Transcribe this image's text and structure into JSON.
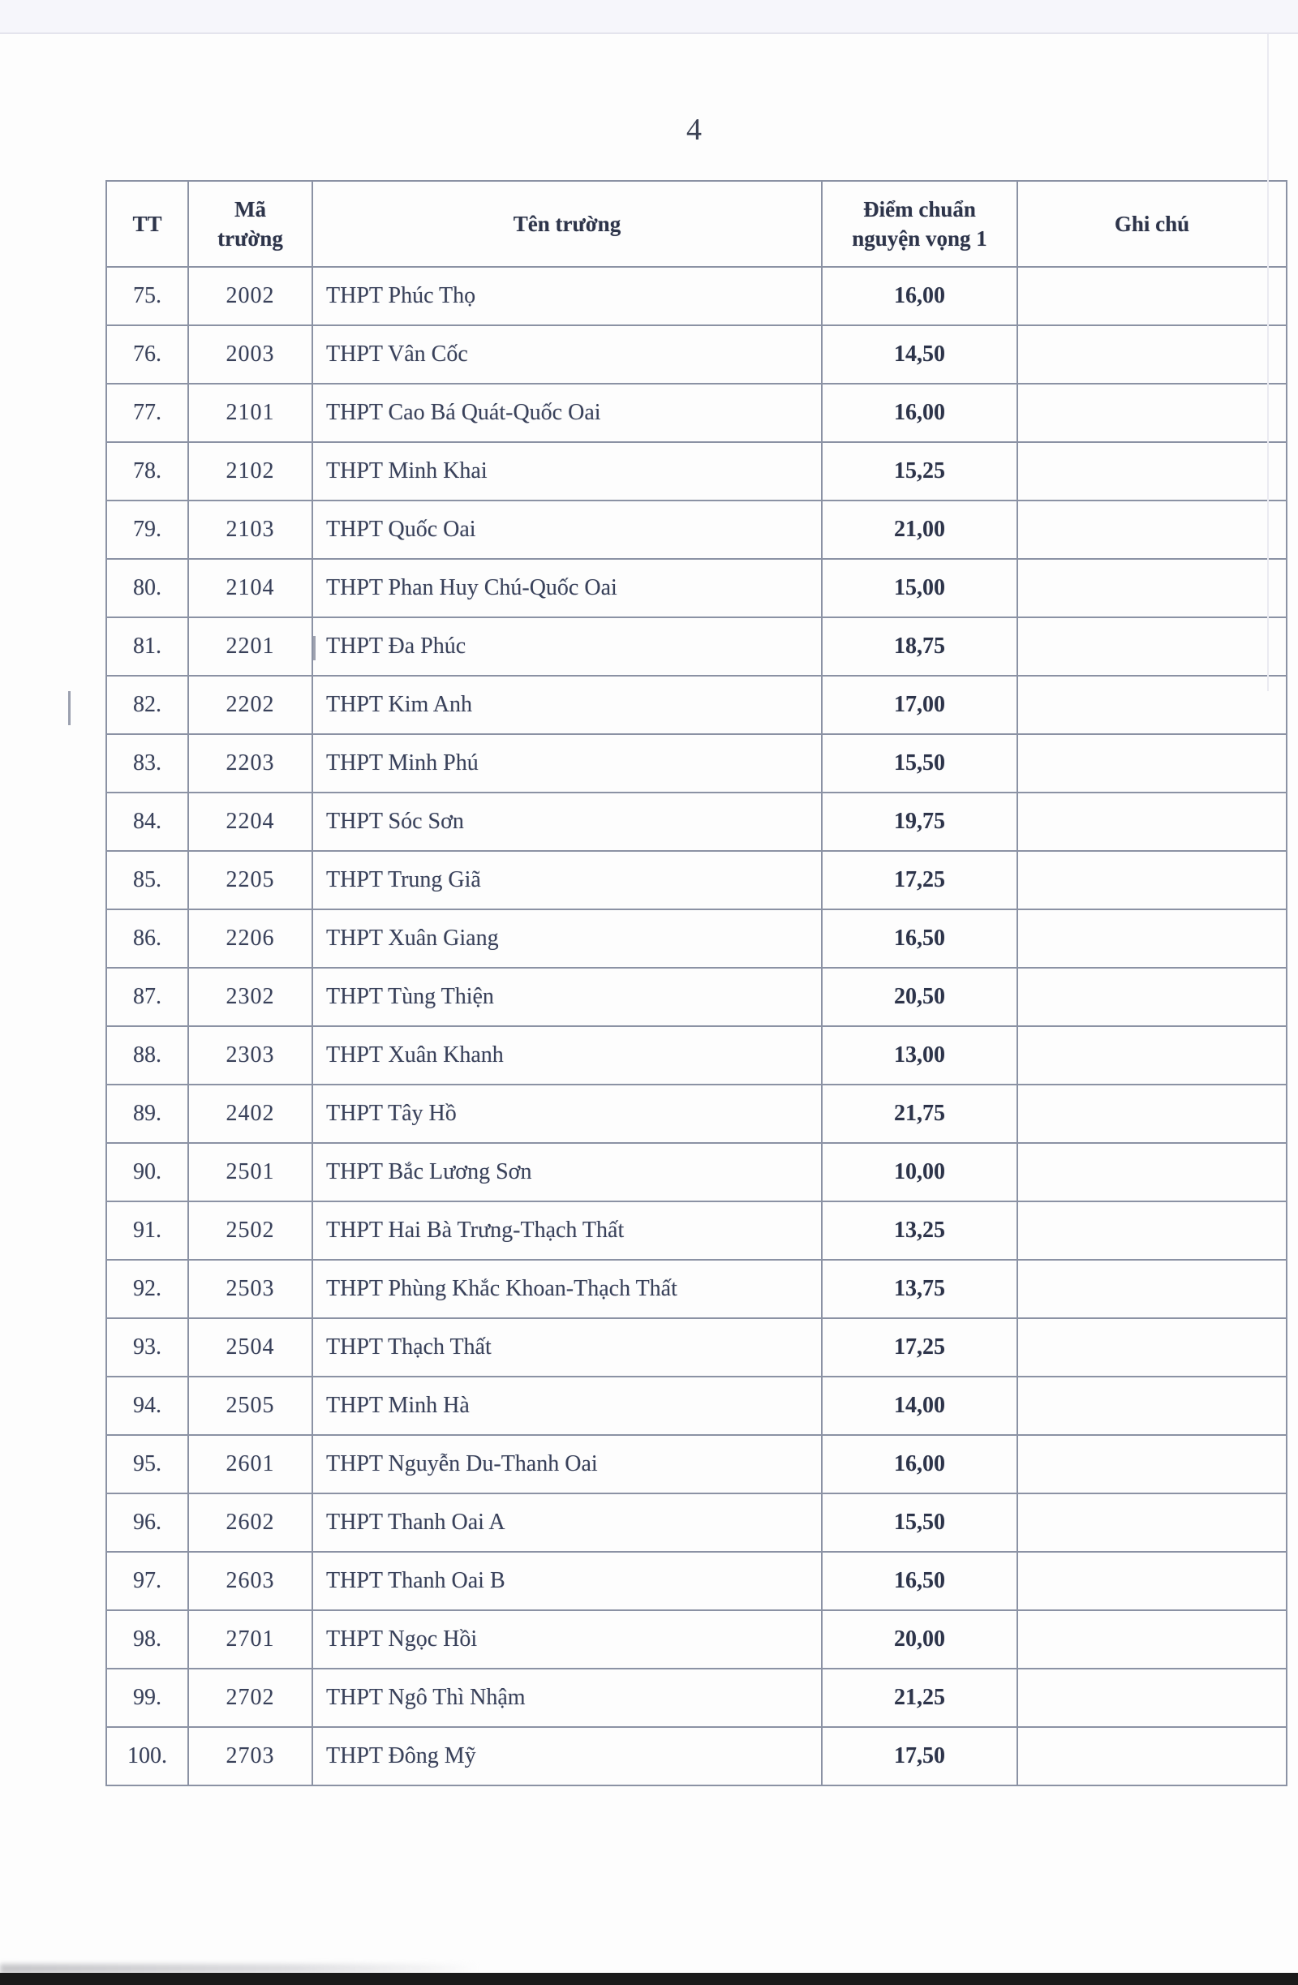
{
  "page": {
    "number": "4"
  },
  "table": {
    "headers": [
      "TT",
      "Mã trường",
      "Tên trường",
      "Điểm chuẩn nguyện vọng 1",
      "Ghi chú"
    ],
    "rows": [
      {
        "tt": "75.",
        "code": "2002",
        "name": "THPT Phúc Thọ",
        "score": "16,00",
        "note": ""
      },
      {
        "tt": "76.",
        "code": "2003",
        "name": "THPT Vân Cốc",
        "score": "14,50",
        "note": ""
      },
      {
        "tt": "77.",
        "code": "2101",
        "name": "THPT Cao Bá Quát-Quốc Oai",
        "score": "16,00",
        "note": ""
      },
      {
        "tt": "78.",
        "code": "2102",
        "name": "THPT Minh Khai",
        "score": "15,25",
        "note": ""
      },
      {
        "tt": "79.",
        "code": "2103",
        "name": "THPT Quốc Oai",
        "score": "21,00",
        "note": ""
      },
      {
        "tt": "80.",
        "code": "2104",
        "name": "THPT Phan Huy Chú-Quốc Oai",
        "score": "15,00",
        "note": ""
      },
      {
        "tt": "81.",
        "code": "2201",
        "name": "THPT Đa Phúc",
        "score": "18,75",
        "note": ""
      },
      {
        "tt": "82.",
        "code": "2202",
        "name": "THPT Kim Anh",
        "score": "17,00",
        "note": ""
      },
      {
        "tt": "83.",
        "code": "2203",
        "name": "THPT Minh Phú",
        "score": "15,50",
        "note": ""
      },
      {
        "tt": "84.",
        "code": "2204",
        "name": "THPT Sóc Sơn",
        "score": "19,75",
        "note": ""
      },
      {
        "tt": "85.",
        "code": "2205",
        "name": "THPT Trung Giã",
        "score": "17,25",
        "note": ""
      },
      {
        "tt": "86.",
        "code": "2206",
        "name": "THPT Xuân Giang",
        "score": "16,50",
        "note": ""
      },
      {
        "tt": "87.",
        "code": "2302",
        "name": "THPT Tùng Thiện",
        "score": "20,50",
        "note": ""
      },
      {
        "tt": "88.",
        "code": "2303",
        "name": "THPT Xuân Khanh",
        "score": "13,00",
        "note": ""
      },
      {
        "tt": "89.",
        "code": "2402",
        "name": "THPT Tây Hồ",
        "score": "21,75",
        "note": ""
      },
      {
        "tt": "90.",
        "code": "2501",
        "name": "THPT Bắc Lương Sơn",
        "score": "10,00",
        "note": ""
      },
      {
        "tt": "91.",
        "code": "2502",
        "name": "THPT Hai Bà Trưng-Thạch Thất",
        "score": "13,25",
        "note": ""
      },
      {
        "tt": "92.",
        "code": "2503",
        "name": "THPT Phùng Khắc Khoan-Thạch Thất",
        "score": "13,75",
        "note": ""
      },
      {
        "tt": "93.",
        "code": "2504",
        "name": "THPT Thạch Thất",
        "score": "17,25",
        "note": ""
      },
      {
        "tt": "94.",
        "code": "2505",
        "name": "THPT Minh Hà",
        "score": "14,00",
        "note": ""
      },
      {
        "tt": "95.",
        "code": "2601",
        "name": "THPT Nguyễn Du-Thanh Oai",
        "score": "16,00",
        "note": ""
      },
      {
        "tt": "96.",
        "code": "2602",
        "name": "THPT Thanh Oai A",
        "score": "15,50",
        "note": ""
      },
      {
        "tt": "97.",
        "code": "2603",
        "name": "THPT Thanh Oai B",
        "score": "16,50",
        "note": ""
      },
      {
        "tt": "98.",
        "code": "2701",
        "name": "THPT Ngọc Hồi",
        "score": "20,00",
        "note": ""
      },
      {
        "tt": "99.",
        "code": "2702",
        "name": "THPT Ngô Thì Nhậm",
        "score": "21,25",
        "note": ""
      },
      {
        "tt": "100.",
        "code": "2703",
        "name": "THPT Đông Mỹ",
        "score": "17,50",
        "note": ""
      }
    ]
  },
  "colors": {
    "ink": "#39415a",
    "line": "#8b92a4",
    "strip": "#f6f6fb",
    "bottom_bar": "#1a1a1a"
  }
}
